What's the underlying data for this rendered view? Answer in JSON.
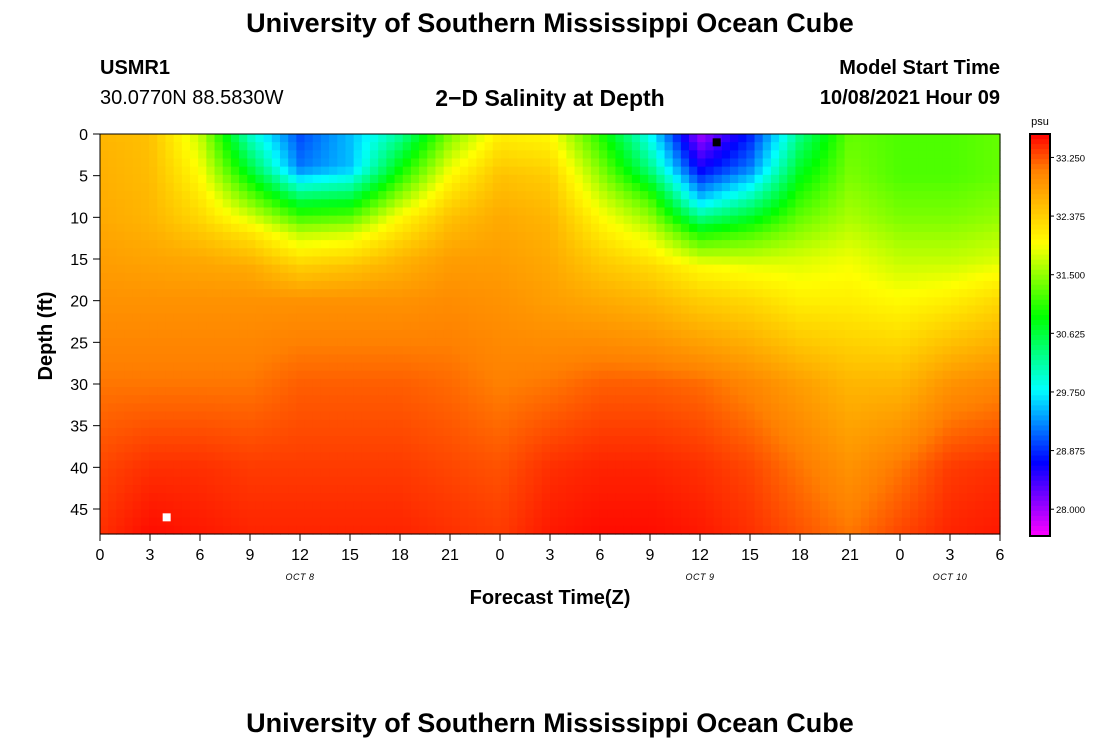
{
  "page": {
    "title_top": "University of Southern Mississippi Ocean Cube",
    "title_bottom": "University of Southern Mississippi Ocean Cube"
  },
  "header": {
    "station_id": "USMR1",
    "coordinates": "30.0770N  88.5830W",
    "plot_title": "2−D Salinity at Depth",
    "start_label": "Model Start Time",
    "start_value": "10/08/2021 Hour 09"
  },
  "colors": {
    "stops": [
      "#ff00ff",
      "#8000ff",
      "#0000ff",
      "#0080ff",
      "#00ffff",
      "#00ff80",
      "#00ff00",
      "#80ff00",
      "#ffff00",
      "#ffc000",
      "#ff8000",
      "#ff0000"
    ],
    "marker_min": "#000000",
    "marker_max": "#ffffff"
  },
  "chart_data": {
    "type": "heatmap",
    "title": "2−D Salinity at Depth",
    "xlabel": "Forecast Time(Z)",
    "ylabel": "Depth (ft)",
    "x_ticks": [
      "0",
      "3",
      "6",
      "9",
      "12",
      "15",
      "18",
      "21",
      "0",
      "3",
      "6",
      "9",
      "12",
      "15",
      "18",
      "21",
      "0",
      "3",
      "6"
    ],
    "x_range_hours": [
      0,
      54
    ],
    "date_labels": [
      {
        "text": "OCT 8",
        "hour": 12
      },
      {
        "text": "OCT 9",
        "hour": 36
      },
      {
        "text": "OCT 10",
        "hour": 51
      }
    ],
    "y_ticks": [
      "0",
      "5",
      "10",
      "15",
      "20",
      "25",
      "30",
      "35",
      "40",
      "45"
    ],
    "y_range_ft": [
      0,
      48
    ],
    "colorbar": {
      "unit": "psu",
      "min": 27.6,
      "max": 33.6,
      "ticks": [
        "33.250",
        "32.375",
        "31.500",
        "30.625",
        "29.750",
        "28.875",
        "28.000"
      ]
    },
    "min_marker": {
      "hour": 37,
      "depth_ft": 1
    },
    "max_marker": {
      "hour": 4,
      "depth_ft": 46
    },
    "profiles": [
      {
        "hour": 0,
        "depth_ft": [
          0,
          10,
          20,
          30,
          40,
          48
        ],
        "psu": [
          32.6,
          32.7,
          32.9,
          33.1,
          33.3,
          33.4
        ]
      },
      {
        "hour": 3,
        "depth_ft": [
          0,
          10,
          20,
          30,
          40,
          48
        ],
        "psu": [
          32.5,
          32.6,
          32.9,
          33.1,
          33.4,
          33.55
        ]
      },
      {
        "hour": 6,
        "depth_ft": [
          0,
          5,
          10,
          15,
          20,
          30,
          40,
          48
        ],
        "psu": [
          31.7,
          32.0,
          32.3,
          32.7,
          32.9,
          33.1,
          33.4,
          33.5
        ]
      },
      {
        "hour": 9,
        "depth_ft": [
          0,
          4,
          8,
          12,
          16,
          20,
          30,
          40,
          48
        ],
        "psu": [
          30.0,
          30.6,
          31.4,
          32.2,
          32.7,
          32.9,
          33.1,
          33.35,
          33.45
        ]
      },
      {
        "hour": 12,
        "depth_ft": [
          0,
          4,
          8,
          12,
          16,
          20,
          30,
          40,
          48
        ],
        "psu": [
          29.0,
          29.2,
          30.6,
          31.7,
          32.4,
          32.9,
          33.2,
          33.35,
          33.45
        ]
      },
      {
        "hour": 15,
        "depth_ft": [
          0,
          4,
          8,
          12,
          16,
          20,
          30,
          40,
          48
        ],
        "psu": [
          29.5,
          29.5,
          30.7,
          31.8,
          32.5,
          32.9,
          33.2,
          33.35,
          33.45
        ]
      },
      {
        "hour": 18,
        "depth_ft": [
          0,
          5,
          10,
          15,
          20,
          30,
          40,
          48
        ],
        "psu": [
          30.2,
          31.0,
          32.0,
          32.6,
          32.9,
          33.2,
          33.35,
          33.45
        ]
      },
      {
        "hour": 21,
        "depth_ft": [
          0,
          5,
          10,
          15,
          20,
          30,
          40,
          48
        ],
        "psu": [
          31.4,
          32.0,
          32.5,
          32.8,
          32.95,
          33.15,
          33.3,
          33.4
        ]
      },
      {
        "hour": 24,
        "depth_ft": [
          0,
          5,
          10,
          20,
          30,
          40,
          48
        ],
        "psu": [
          32.1,
          32.5,
          32.7,
          32.9,
          33.05,
          33.25,
          33.35
        ]
      },
      {
        "hour": 27,
        "depth_ft": [
          0,
          5,
          10,
          20,
          30,
          40,
          48
        ],
        "psu": [
          32.0,
          32.4,
          32.6,
          32.8,
          33.1,
          33.4,
          33.5
        ]
      },
      {
        "hour": 30,
        "depth_ft": [
          0,
          5,
          10,
          15,
          20,
          30,
          40,
          48
        ],
        "psu": [
          31.0,
          31.5,
          32.0,
          32.4,
          32.7,
          33.2,
          33.45,
          33.55
        ]
      },
      {
        "hour": 33,
        "depth_ft": [
          0,
          4,
          8,
          12,
          16,
          20,
          30,
          40,
          48
        ],
        "psu": [
          29.8,
          30.3,
          31.2,
          31.8,
          32.3,
          32.6,
          33.2,
          33.45,
          33.55
        ]
      },
      {
        "hour": 36,
        "depth_ft": [
          0,
          4,
          8,
          12,
          16,
          20,
          30,
          40,
          48
        ],
        "psu": [
          28.0,
          28.6,
          29.6,
          31.0,
          32.0,
          32.4,
          33.15,
          33.4,
          33.5
        ]
      },
      {
        "hour": 39,
        "depth_ft": [
          0,
          4,
          8,
          12,
          16,
          20,
          30,
          40,
          48
        ],
        "psu": [
          28.8,
          29.2,
          30.2,
          31.2,
          31.9,
          32.3,
          33.0,
          33.3,
          33.4
        ]
      },
      {
        "hour": 42,
        "depth_ft": [
          0,
          5,
          10,
          15,
          20,
          30,
          40,
          48
        ],
        "psu": [
          30.3,
          30.8,
          31.3,
          31.8,
          32.1,
          32.8,
          33.1,
          33.25
        ]
      },
      {
        "hour": 45,
        "depth_ft": [
          0,
          5,
          10,
          15,
          20,
          30,
          40,
          48
        ],
        "psu": [
          31.3,
          31.4,
          31.6,
          31.9,
          32.1,
          32.6,
          32.9,
          33.1
        ]
      },
      {
        "hour": 48,
        "depth_ft": [
          0,
          5,
          10,
          15,
          20,
          30,
          40,
          48
        ],
        "psu": [
          31.2,
          31.2,
          31.4,
          31.7,
          32.0,
          32.6,
          33.1,
          33.3
        ]
      },
      {
        "hour": 51,
        "depth_ft": [
          0,
          5,
          10,
          15,
          20,
          30,
          40,
          48
        ],
        "psu": [
          31.2,
          31.2,
          31.4,
          31.7,
          32.1,
          32.9,
          33.35,
          33.45
        ]
      },
      {
        "hour": 54,
        "depth_ft": [
          0,
          5,
          10,
          15,
          20,
          30,
          40,
          48
        ],
        "psu": [
          31.3,
          31.3,
          31.5,
          31.8,
          32.3,
          33.0,
          33.4,
          33.5
        ]
      }
    ]
  }
}
